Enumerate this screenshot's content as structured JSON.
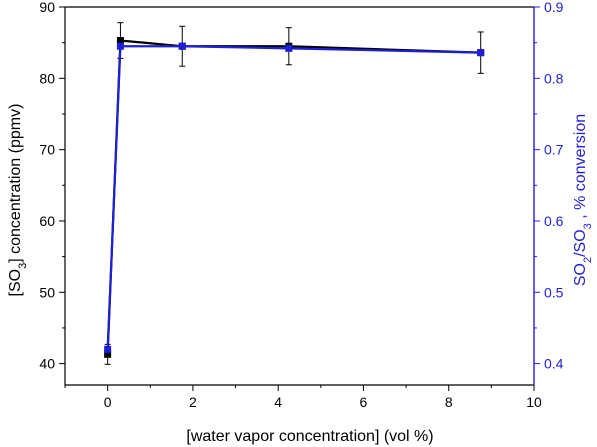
{
  "chart_data": {
    "type": "line",
    "title": "",
    "xlabel": "[water vapor concentration] (vol %)",
    "ylabel_left": {
      "base": "[SO",
      "sub": "3",
      "tail": "] concentration (ppmv)"
    },
    "ylabel_right": {
      "p1": "SO",
      "s1": "2",
      "p2": "/SO",
      "s2": "3",
      "p3": " , % conversion"
    },
    "xlim": [
      -1,
      10
    ],
    "ylim_left": [
      37,
      90
    ],
    "ylim_right": [
      0.37,
      0.9
    ],
    "x_ticks": [
      0,
      2,
      4,
      6,
      8,
      10
    ],
    "y_left_ticks": [
      40,
      50,
      60,
      70,
      80,
      90
    ],
    "y_right_ticks": [
      0.4,
      0.5,
      0.6,
      0.7,
      0.8,
      0.9
    ],
    "grid": false,
    "series": [
      {
        "axis": "left",
        "color": "#000000",
        "marker": "square",
        "points": [
          {
            "x": 0,
            "y": 41.3,
            "err": 1.4
          },
          {
            "x": 0.3,
            "y": 85.3,
            "err": 2.5
          },
          {
            "x": 1.75,
            "y": 84.5,
            "err": 2.8
          },
          {
            "x": 4.25,
            "y": 84.5,
            "err": 2.6
          },
          {
            "x": 8.75,
            "y": 83.6,
            "err": 2.9
          }
        ]
      },
      {
        "axis": "right",
        "color": "#1f1fd6",
        "marker": "square",
        "points": [
          {
            "x": 0,
            "y": 0.42
          },
          {
            "x": 0.3,
            "y": 0.845
          },
          {
            "x": 1.75,
            "y": 0.845
          },
          {
            "x": 4.25,
            "y": 0.842
          },
          {
            "x": 8.75,
            "y": 0.836
          }
        ]
      }
    ]
  },
  "colors": {
    "left_axis": "#000000",
    "right_axis": "#1f1fd6",
    "background": "#ffffff"
  }
}
